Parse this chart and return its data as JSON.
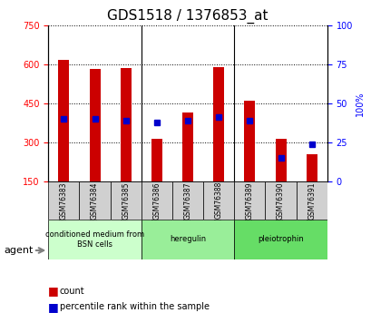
{
  "title": "GDS1518 / 1376853_at",
  "samples": [
    "GSM76383",
    "GSM76384",
    "GSM76385",
    "GSM76386",
    "GSM76387",
    "GSM76388",
    "GSM76389",
    "GSM76390",
    "GSM76391"
  ],
  "counts": [
    615,
    580,
    585,
    315,
    415,
    590,
    460,
    315,
    255
  ],
  "percentiles": [
    40,
    40,
    39,
    38,
    39,
    41,
    39,
    15,
    24
  ],
  "ylim_left": [
    150,
    750
  ],
  "ylim_right": [
    0,
    100
  ],
  "yticks_left": [
    150,
    300,
    450,
    600,
    750
  ],
  "yticks_right": [
    0,
    25,
    50,
    75,
    100
  ],
  "bar_color": "#cc0000",
  "dot_color": "#0000cc",
  "groups": [
    {
      "label": "conditioned medium from\nBSN cells",
      "start": 0,
      "end": 3,
      "color": "#ccffcc"
    },
    {
      "label": "heregulin",
      "start": 3,
      "end": 6,
      "color": "#99ee99"
    },
    {
      "label": "pleiotrophin",
      "start": 6,
      "end": 9,
      "color": "#66dd66"
    }
  ],
  "agent_label": "agent",
  "legend_count_label": "count",
  "legend_pct_label": "percentile rank within the sample",
  "background_color": "#ffffff",
  "plot_bg_color": "#ffffff",
  "grid_color": "#000000",
  "title_fontsize": 11,
  "tick_fontsize": 7,
  "label_fontsize": 8
}
